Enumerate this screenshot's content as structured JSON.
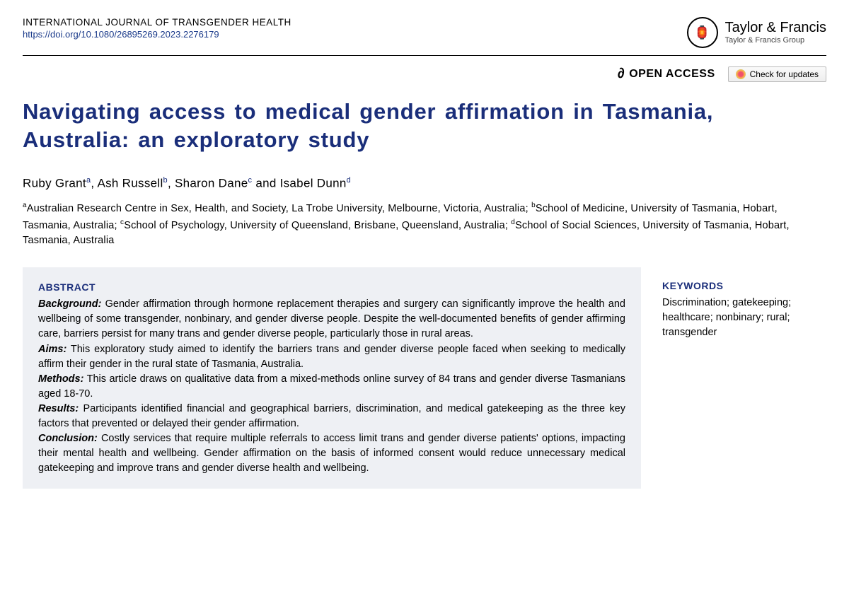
{
  "header": {
    "journal_name": "INTERNATIONAL JOURNAL OF TRANSGENDER HEALTH",
    "doi": "https://doi.org/10.1080/26895269.2023.2276179",
    "publisher_name": "Taylor & Francis",
    "publisher_tagline": "Taylor & Francis Group"
  },
  "badges": {
    "open_access": "OPEN ACCESS",
    "check_updates": "Check for updates"
  },
  "title": "Navigating access to medical gender affirmation in Tasmania, Australia: an exploratory study",
  "authors_html": "Ruby Grant<sup>a</sup>, Ash Russell<sup>b</sup>, Sharon Dane<sup>c</sup> and Isabel Dunn<sup>d</sup>",
  "affiliations_html": "<sup>a</sup>Australian Research Centre in Sex, Health, and Society, La Trobe University, Melbourne, Victoria, Australia; <sup>b</sup>School of Medicine, University of Tasmania, Hobart, Tasmania, Australia; <sup>c</sup>School of Psychology, University of Queensland, Brisbane, Queensland, Australia; <sup>d</sup>School of Social Sciences, University of Tasmania, Hobart, Tasmania, Australia",
  "abstract": {
    "heading": "ABSTRACT",
    "sections": [
      {
        "label": "Background:",
        "text": " Gender affirmation through hormone replacement therapies and surgery can significantly improve the health and wellbeing of some transgender, nonbinary, and gender diverse people. Despite the well-documented benefits of gender affirming care, barriers persist for many trans and gender diverse people, particularly those in rural areas."
      },
      {
        "label": "Aims:",
        "text": " This exploratory study aimed to identify the barriers trans and gender diverse people faced when seeking to medically affirm their gender in the rural state of Tasmania, Australia."
      },
      {
        "label": "Methods:",
        "text": " This article draws on qualitative data from a mixed-methods online survey of 84 trans and gender diverse Tasmanians aged 18-70."
      },
      {
        "label": "Results:",
        "text": " Participants identified financial and geographical barriers, discrimination, and medical gatekeeping as the three key factors that prevented or delayed their gender affirmation."
      },
      {
        "label": "Conclusion:",
        "text": " Costly services that require multiple referrals to access limit trans and gender diverse patients' options, impacting their mental health and wellbeing. Gender affirmation on the basis of informed consent would reduce unnecessary medical gatekeeping and improve trans and gender diverse health and wellbeing."
      }
    ]
  },
  "keywords": {
    "heading": "KEYWORDS",
    "text": "Discrimination; gatekeeping; healthcare; nonbinary; rural; transgender"
  },
  "colors": {
    "title_color": "#1a2e7a",
    "link_color": "#1a3a8a",
    "abstract_bg": "#eef0f4",
    "text": "#000000"
  }
}
